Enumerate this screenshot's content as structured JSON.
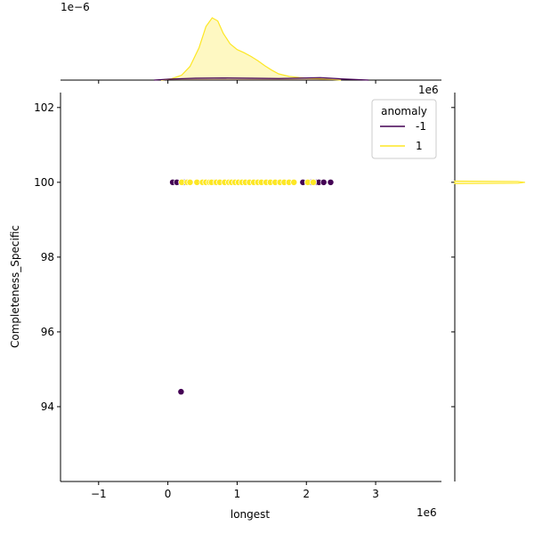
{
  "chart_data": {
    "type": "scatter",
    "title": "",
    "xlabel": "longest",
    "ylabel": "Completeness_Specific",
    "x_scale_label": "1e6",
    "y_scale_label_top": "1e−6",
    "x_ticks": [
      -1,
      0,
      1,
      2,
      3
    ],
    "x_tick_labels": [
      "−1",
      "0",
      "1",
      "2",
      "3"
    ],
    "y_ticks": [
      94,
      96,
      98,
      100,
      102
    ],
    "y_tick_labels": [
      "94",
      "96",
      "98",
      "100",
      "102"
    ],
    "xlim": [
      -1.55,
      3.95
    ],
    "ylim": [
      92.0,
      102.4
    ],
    "grid": false,
    "legend": {
      "title": "anomaly",
      "placement": "top-right",
      "entries": [
        {
          "label": "-1",
          "color": "#440154"
        },
        {
          "label": "1",
          "color": "#fde725"
        }
      ]
    },
    "series": [
      {
        "name": "-1",
        "color": "#440154",
        "points": [
          [
            0.07,
            100
          ],
          [
            0.13,
            100
          ],
          [
            0.23,
            100
          ],
          [
            0.68,
            100
          ],
          [
            1.95,
            100
          ],
          [
            2.07,
            100
          ],
          [
            2.12,
            100
          ],
          [
            2.15,
            100
          ],
          [
            2.18,
            100
          ],
          [
            2.25,
            100
          ],
          [
            2.35,
            100
          ],
          [
            0.19,
            94.4
          ]
        ]
      },
      {
        "name": "1",
        "color": "#fde725",
        "points": [
          [
            0.2,
            100
          ],
          [
            0.28,
            100
          ],
          [
            0.32,
            100
          ],
          [
            0.42,
            100
          ],
          [
            0.5,
            100
          ],
          [
            0.55,
            100
          ],
          [
            0.6,
            100
          ],
          [
            0.63,
            100
          ],
          [
            0.7,
            100
          ],
          [
            0.75,
            100
          ],
          [
            0.82,
            100
          ],
          [
            0.88,
            100
          ],
          [
            0.92,
            100
          ],
          [
            0.97,
            100
          ],
          [
            1.02,
            100
          ],
          [
            1.07,
            100
          ],
          [
            1.12,
            100
          ],
          [
            1.18,
            100
          ],
          [
            1.24,
            100
          ],
          [
            1.3,
            100
          ],
          [
            1.35,
            100
          ],
          [
            1.42,
            100
          ],
          [
            1.48,
            100
          ],
          [
            1.55,
            100
          ],
          [
            1.62,
            100
          ],
          [
            1.68,
            100
          ],
          [
            1.75,
            100
          ],
          [
            1.82,
            100
          ],
          [
            2.02,
            100
          ],
          [
            2.1,
            100
          ]
        ]
      }
    ],
    "marginal_x_density": {
      "1": [
        [
          -0.1,
          0.0
        ],
        [
          0.05,
          0.02
        ],
        [
          0.2,
          0.08
        ],
        [
          0.32,
          0.22
        ],
        [
          0.45,
          0.52
        ],
        [
          0.55,
          0.86
        ],
        [
          0.64,
          1.0
        ],
        [
          0.72,
          0.95
        ],
        [
          0.8,
          0.75
        ],
        [
          0.9,
          0.58
        ],
        [
          1.0,
          0.49
        ],
        [
          1.1,
          0.44
        ],
        [
          1.2,
          0.38
        ],
        [
          1.3,
          0.31
        ],
        [
          1.4,
          0.23
        ],
        [
          1.5,
          0.16
        ],
        [
          1.6,
          0.1
        ],
        [
          1.75,
          0.06
        ],
        [
          1.9,
          0.04
        ],
        [
          2.05,
          0.03
        ],
        [
          2.2,
          0.02
        ],
        [
          2.35,
          0.01
        ],
        [
          2.5,
          0.0
        ]
      ],
      "-1": [
        [
          -0.2,
          0.0
        ],
        [
          0.0,
          0.015
        ],
        [
          0.4,
          0.03
        ],
        [
          0.8,
          0.035
        ],
        [
          1.2,
          0.03
        ],
        [
          1.6,
          0.025
        ],
        [
          2.0,
          0.035
        ],
        [
          2.2,
          0.04
        ],
        [
          2.5,
          0.02
        ],
        [
          2.9,
          0.0
        ]
      ]
    },
    "marginal_y_density": {
      "1": {
        "center": 100,
        "level": 1.0
      }
    }
  }
}
